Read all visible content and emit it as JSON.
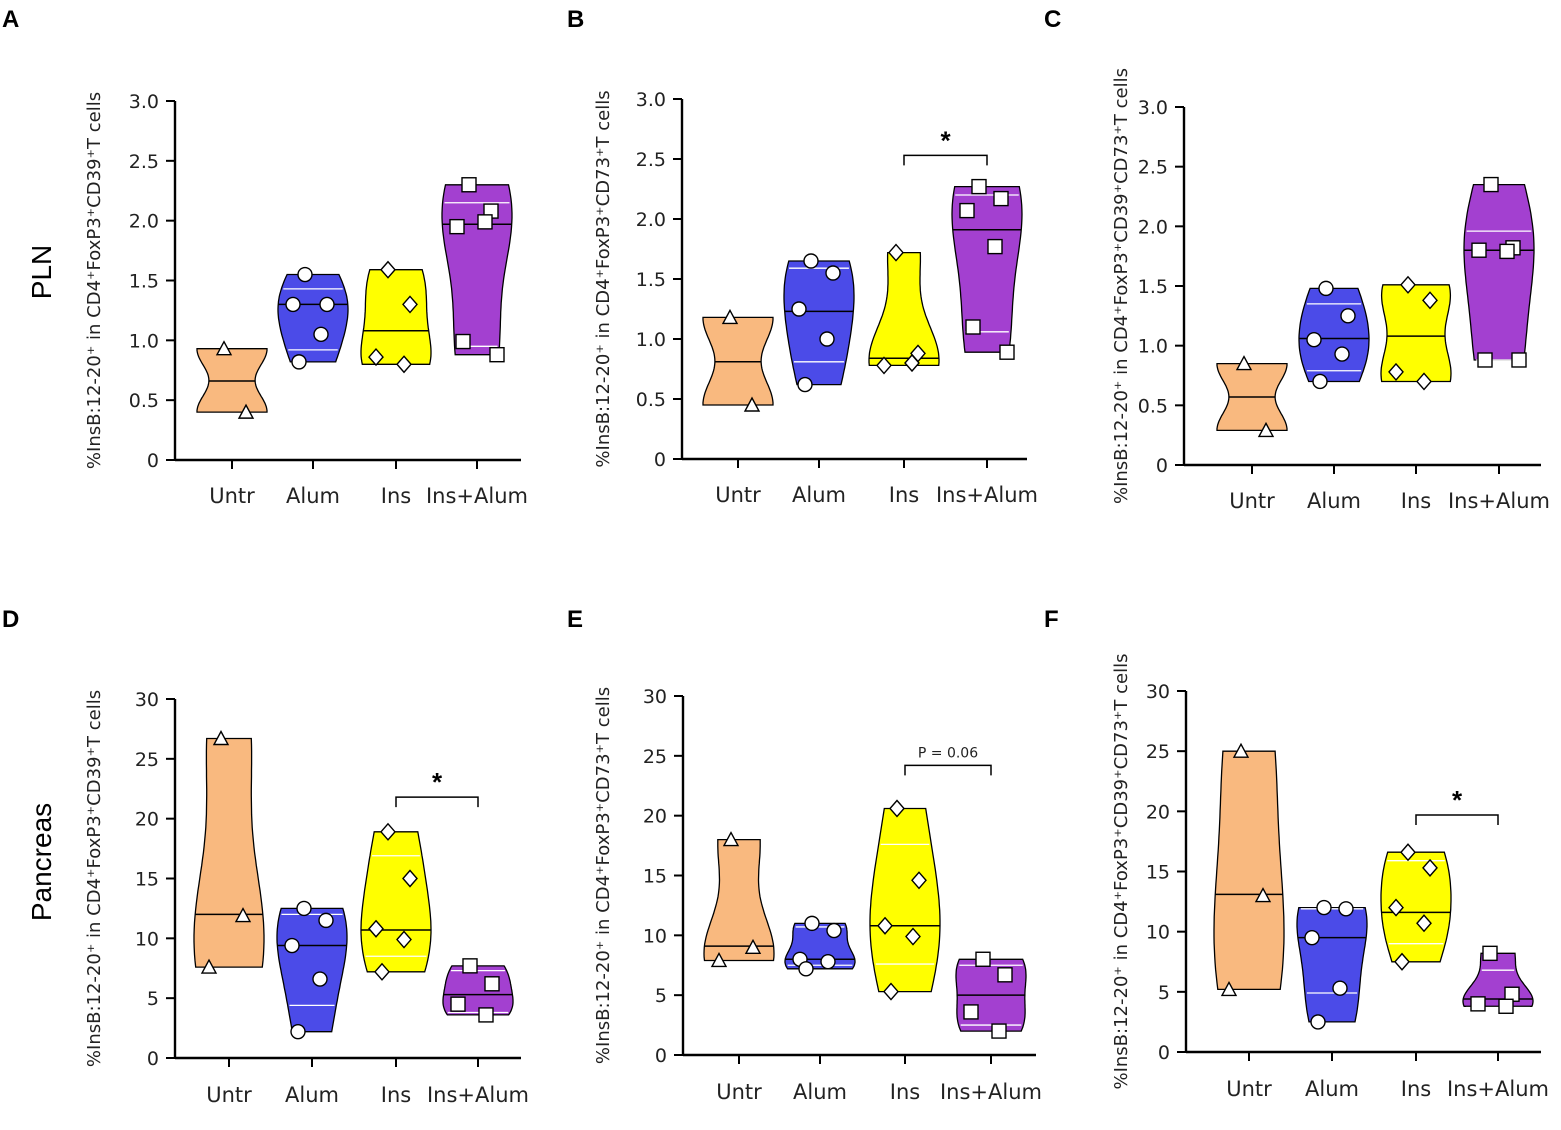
{
  "row_labels": {
    "top": "PLN",
    "bottom": "Pancreas"
  },
  "colors": {
    "Untr": "#F9B97F",
    "Alum": "#4B4BE8",
    "Ins": "#FFFF00",
    "Ins+Alum": "#A340D0"
  },
  "markers": {
    "Untr": "triangle",
    "Alum": "circle",
    "Ins": "diamond",
    "Ins+Alum": "square"
  },
  "chart_data": [
    {
      "panel": "A",
      "type": "violin",
      "ylabel": "%InsB:12-20⁺ in CD4⁺FoxP3⁺CD39⁺T cells",
      "ylim": [
        0,
        3.0
      ],
      "yticks": [
        "0",
        "0.5",
        "1.0",
        "1.5",
        "2.0",
        "2.5",
        "3.0"
      ],
      "yticks_values": [
        0,
        0.5,
        1.0,
        1.5,
        2.0,
        2.5,
        3.0
      ],
      "categories": [
        "Untr",
        "Alum",
        "Ins",
        "Ins+Alum"
      ],
      "series": [
        {
          "name": "Untr",
          "values": [
            0.93,
            0.4
          ],
          "median": 0.66
        },
        {
          "name": "Alum",
          "values": [
            1.55,
            1.3,
            1.3,
            1.05,
            0.82
          ],
          "median": 1.3,
          "q1": 0.92,
          "q3": 1.43
        },
        {
          "name": "Ins",
          "values": [
            1.59,
            1.3,
            0.86,
            0.8
          ],
          "median": 1.08
        },
        {
          "name": "Ins+Alum",
          "values": [
            2.3,
            2.08,
            1.95,
            1.99,
            0.99,
            0.88
          ],
          "median": 1.97,
          "q1": 0.95,
          "q3": 2.15
        }
      ],
      "significance": []
    },
    {
      "panel": "B",
      "type": "violin",
      "ylabel": "%InsB:12-20⁺ in CD4⁺FoxP3⁺CD73⁺T cells",
      "ylim": [
        0,
        3.0
      ],
      "yticks": [
        "0",
        "0.5",
        "1.0",
        "1.5",
        "2.0",
        "2.5",
        "3.0"
      ],
      "yticks_values": [
        0,
        0.5,
        1.0,
        1.5,
        2.0,
        2.5,
        3.0
      ],
      "categories": [
        "Untr",
        "Alum",
        "Ins",
        "Ins+Alum"
      ],
      "series": [
        {
          "name": "Untr",
          "values": [
            1.18,
            0.45
          ],
          "median": 0.81
        },
        {
          "name": "Alum",
          "values": [
            1.65,
            1.55,
            1.25,
            1.0,
            0.62
          ],
          "median": 1.23,
          "q1": 0.81,
          "q3": 1.59
        },
        {
          "name": "Ins",
          "values": [
            1.72,
            0.88,
            0.78,
            0.8
          ],
          "median": 0.84
        },
        {
          "name": "Ins+Alum",
          "values": [
            2.27,
            2.17,
            2.07,
            1.77,
            1.1,
            0.89
          ],
          "median": 1.91,
          "q1": 1.06,
          "q3": 2.2
        }
      ],
      "significance": [
        {
          "from": "Ins",
          "to": "Ins+Alum",
          "label": "*",
          "y": 2.53
        }
      ]
    },
    {
      "panel": "C",
      "type": "violin",
      "ylabel": "%InsB:12-20⁺ in CD4⁺FoxP3⁺CD39⁺CD73⁺T cells",
      "ylim": [
        0,
        3.0
      ],
      "yticks": [
        "0",
        "0.5",
        "1.0",
        "1.5",
        "2.0",
        "2.5",
        "3.0"
      ],
      "yticks_values": [
        0,
        0.5,
        1.0,
        1.5,
        2.0,
        2.5,
        3.0
      ],
      "categories": [
        "Untr",
        "Alum",
        "Ins",
        "Ins+Alum"
      ],
      "series": [
        {
          "name": "Untr",
          "values": [
            0.85,
            0.29
          ],
          "median": 0.57
        },
        {
          "name": "Alum",
          "values": [
            1.48,
            1.25,
            1.05,
            0.93,
            0.7
          ],
          "median": 1.06,
          "q1": 0.79,
          "q3": 1.35
        },
        {
          "name": "Ins",
          "values": [
            1.51,
            1.38,
            0.78,
            0.7
          ],
          "median": 1.08
        },
        {
          "name": "Ins+Alum",
          "values": [
            2.35,
            1.82,
            1.8,
            1.79,
            0.88,
            0.88
          ],
          "median": 1.8,
          "q1": 0.88,
          "q3": 1.96
        }
      ],
      "significance": []
    },
    {
      "panel": "D",
      "type": "violin",
      "ylabel": "%InsB:12-20⁺ in CD4⁺FoxP3⁺CD39⁺T cells",
      "ylim": [
        0,
        30
      ],
      "yticks": [
        "0",
        "5",
        "10",
        "15",
        "20",
        "25",
        "30"
      ],
      "yticks_values": [
        0,
        5,
        10,
        15,
        20,
        25,
        30
      ],
      "categories": [
        "Untr",
        "Alum",
        "Ins",
        "Ins+Alum"
      ],
      "series": [
        {
          "name": "Untr",
          "values": [
            26.7,
            11.9,
            7.6
          ],
          "median": 12.0
        },
        {
          "name": "Alum",
          "values": [
            12.5,
            11.5,
            9.4,
            6.6,
            2.2
          ],
          "median": 9.4,
          "q1": 4.4,
          "q3": 12.0
        },
        {
          "name": "Ins",
          "values": [
            18.9,
            15.0,
            10.8,
            9.9,
            7.2
          ],
          "median": 10.7,
          "q1": 8.5,
          "q3": 16.9
        },
        {
          "name": "Ins+Alum",
          "values": [
            7.7,
            6.2,
            4.5,
            3.6
          ],
          "median": 5.3,
          "q1": 3.8,
          "q3": 7.3
        }
      ],
      "significance": [
        {
          "from": "Ins",
          "to": "Ins+Alum",
          "label": "*",
          "y": 21.8
        }
      ]
    },
    {
      "panel": "E",
      "type": "violin",
      "ylabel": "%InsB:12-20⁺ in CD4⁺FoxP3⁺CD73⁺T cells",
      "ylim": [
        0,
        30
      ],
      "yticks": [
        "0",
        "5",
        "10",
        "15",
        "20",
        "25",
        "30"
      ],
      "yticks_values": [
        0,
        5,
        10,
        15,
        20,
        25,
        30
      ],
      "categories": [
        "Untr",
        "Alum",
        "Ins",
        "Ins+Alum"
      ],
      "series": [
        {
          "name": "Untr",
          "values": [
            18.0,
            9.0,
            7.9
          ],
          "median": 9.1
        },
        {
          "name": "Alum",
          "values": [
            11.0,
            10.4,
            8.0,
            7.8,
            7.2
          ],
          "median": 8.0,
          "q1": 7.5,
          "q3": 10.7
        },
        {
          "name": "Ins",
          "values": [
            20.6,
            14.6,
            10.8,
            9.9,
            5.3
          ],
          "median": 10.8,
          "q1": 7.6,
          "q3": 17.6
        },
        {
          "name": "Ins+Alum",
          "values": [
            8.0,
            6.7,
            3.6,
            2.0
          ],
          "median": 5.0,
          "q1": 2.5,
          "q3": 7.5
        }
      ],
      "significance": [
        {
          "from": "Ins",
          "to": "Ins+Alum",
          "label": "P = 0.06",
          "y": 24.2
        }
      ]
    },
    {
      "panel": "F",
      "type": "violin",
      "ylabel": "%InsB:12-20⁺ in CD4⁺FoxP3⁺CD39⁺CD73⁺T cells",
      "ylim": [
        0,
        30
      ],
      "yticks": [
        "0",
        "5",
        "10",
        "15",
        "20",
        "25",
        "30"
      ],
      "yticks_values": [
        0,
        5,
        10,
        15,
        20,
        25,
        30
      ],
      "categories": [
        "Untr",
        "Alum",
        "Ins",
        "Ins+Alum"
      ],
      "series": [
        {
          "name": "Untr",
          "values": [
            25.0,
            13.0,
            5.2
          ],
          "median": 13.1
        },
        {
          "name": "Alum",
          "values": [
            12.0,
            11.9,
            9.5,
            5.3,
            2.5
          ],
          "median": 9.5,
          "q1": 4.9,
          "q3": 11.9
        },
        {
          "name": "Ins",
          "values": [
            16.6,
            15.3,
            12.0,
            10.7,
            7.5
          ],
          "median": 11.6,
          "q1": 9.0,
          "q3": 15.9
        },
        {
          "name": "Ins+Alum",
          "values": [
            8.2,
            4.8,
            4.0,
            3.8
          ],
          "median": 4.4,
          "q1": 3.7,
          "q3": 6.8
        }
      ],
      "significance": [
        {
          "from": "Ins",
          "to": "Ins+Alum",
          "label": "*",
          "y": 19.7
        }
      ]
    }
  ]
}
